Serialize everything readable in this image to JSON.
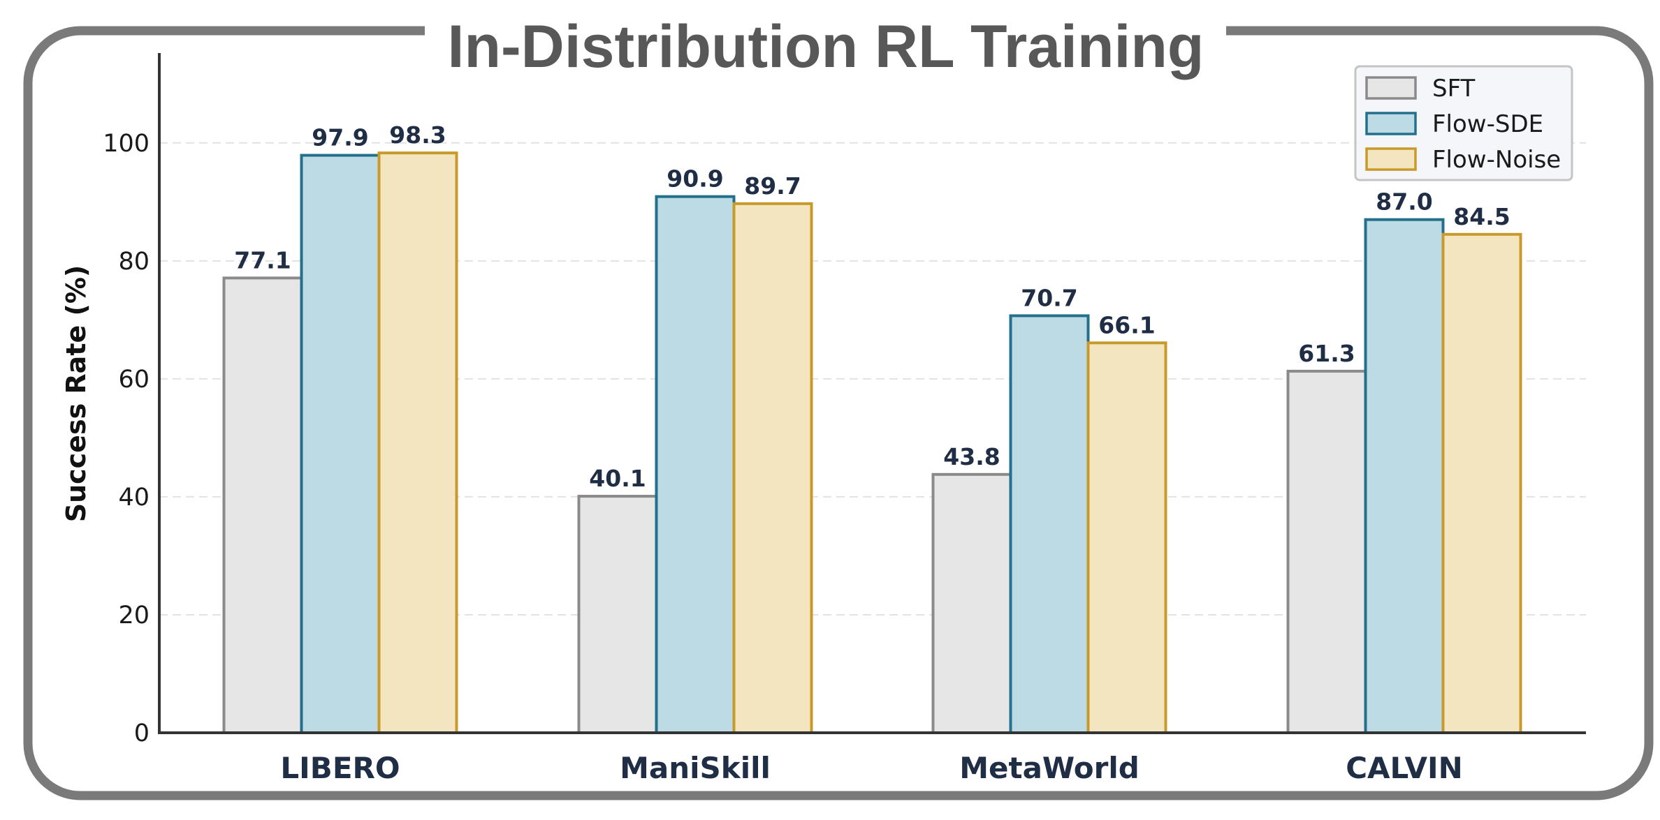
{
  "chart_data": {
    "type": "bar",
    "title": "In-Distribution  RL Training",
    "xlabel": "",
    "ylabel": "Success Rate (%)",
    "ylim": [
      0,
      115
    ],
    "yticks": [
      0,
      20,
      40,
      60,
      80,
      100
    ],
    "grid": true,
    "legend_position": "top-right",
    "categories": [
      "LIBERO",
      "ManiSkill",
      "MetaWorld",
      "CALVIN"
    ],
    "series": [
      {
        "name": "SFT",
        "values": [
          77.1,
          40.1,
          43.8,
          61.3
        ],
        "labels": [
          "77.1",
          "40.1",
          "43.8",
          "61.3"
        ],
        "fill": "#e6e6e6",
        "stroke": "#8a8a8a"
      },
      {
        "name": "Flow-SDE",
        "values": [
          97.9,
          90.9,
          70.7,
          87.0
        ],
        "labels": [
          "97.9",
          "90.9",
          "70.7",
          "87.0"
        ],
        "fill": "#bddbe5",
        "stroke": "#23708c"
      },
      {
        "name": "Flow-Noise",
        "values": [
          98.3,
          89.7,
          66.1,
          84.5
        ],
        "labels": [
          "98.3",
          "89.7",
          "66.1",
          "84.5"
        ],
        "fill": "#f4e5c1",
        "stroke": "#c89a2a"
      }
    ],
    "colors": {
      "frame": "#7a7a7a",
      "title": "#585858",
      "axis": "#333333",
      "grid": "#e2e2e2",
      "value_label": "#1f2d45",
      "category_label": "#1f2d45",
      "legend_bg": "#f4f6f9",
      "legend_border": "#c4c4c4"
    }
  }
}
